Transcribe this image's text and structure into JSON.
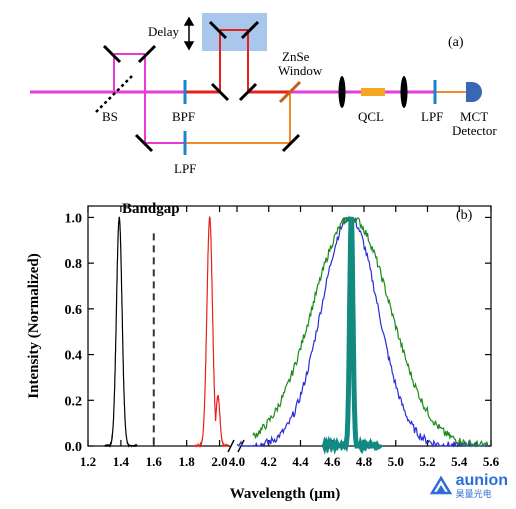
{
  "panel_a": {
    "label": "(a)",
    "delay_label": "Delay",
    "bs_label": "BS",
    "bpf_label": "BPF",
    "lpf_bottom_label": "LPF",
    "znse_line1": "ZnSe",
    "znse_line2": "Window",
    "qcl_label": "QCL",
    "lpf_right_label": "LPF",
    "mct_line1": "MCT",
    "mct_line2": "Detector"
  },
  "panel_b": {
    "label": "(b)",
    "bandgap_label": "Bandgap",
    "ylabel": "Intensity (Normalized)",
    "xlabel": "Wavelength (μm)"
  },
  "watermark": {
    "brand": "aunion",
    "sub": "昊量光电"
  },
  "chart_data": {
    "type": "line",
    "ylim": [
      0,
      1.05
    ],
    "yticks": [
      "0.0",
      "0.2",
      "0.4",
      "0.6",
      "0.8",
      "1.0"
    ],
    "x_axis_segments": [
      {
        "range": [
          1.2,
          2.1
        ],
        "ticks": [
          "1.2",
          "1.4",
          "1.6",
          "1.8",
          "2.0"
        ]
      },
      {
        "range": [
          4.0,
          5.6
        ],
        "ticks": [
          "4.0",
          "4.2",
          "4.4",
          "4.6",
          "4.8",
          "5.0",
          "5.2",
          "5.4",
          "5.6"
        ]
      }
    ],
    "bandgap_x": 1.6,
    "series": [
      {
        "color": "#000000",
        "peak_x": 1.39,
        "fwhm": 0.04,
        "range": [
          1.3,
          1.5
        ]
      },
      {
        "color": "#e8201c",
        "peak_x": 1.94,
        "fwhm": 0.04,
        "range": [
          1.85,
          2.05
        ]
      },
      {
        "color": "#2b2bd8",
        "peak_x": 4.71,
        "fwhm": 0.42,
        "range": [
          4.0,
          5.58
        ]
      },
      {
        "color": "#1e8a1e",
        "peak_x": 4.72,
        "fwhm": 0.58,
        "range": [
          4.1,
          5.58
        ]
      },
      {
        "color": "#128a82",
        "peak_x": 4.72,
        "fwhm": 0.025,
        "range": [
          4.55,
          4.9
        ]
      }
    ]
  }
}
